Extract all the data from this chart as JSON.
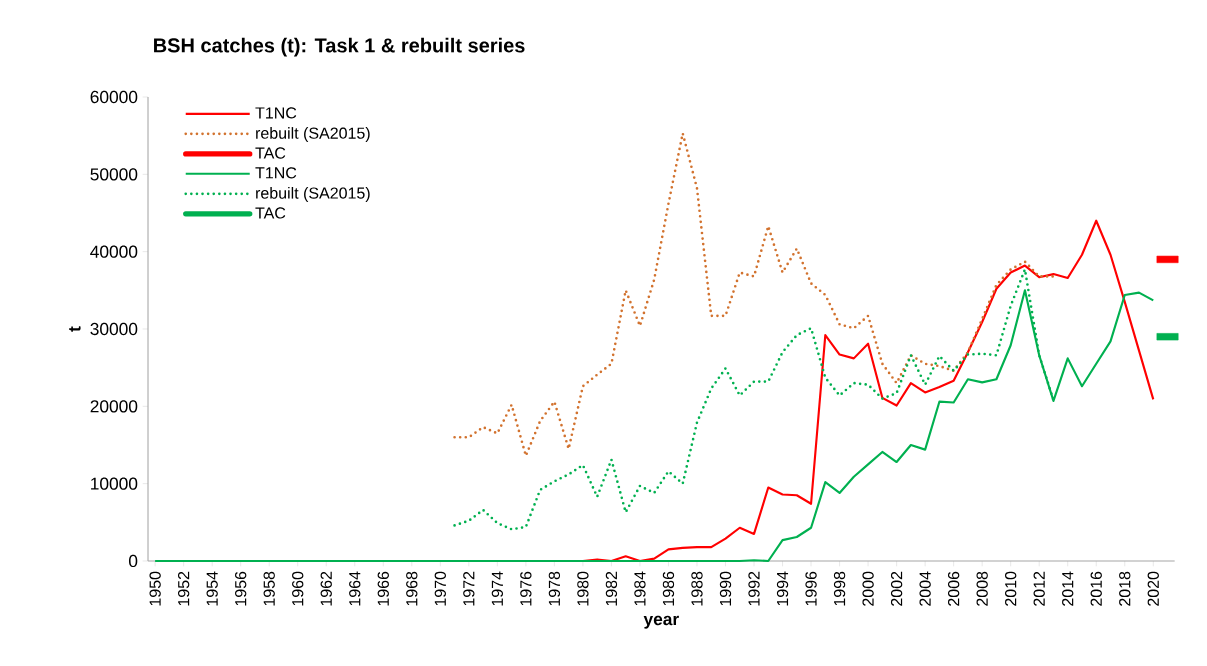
{
  "chart_data": {
    "type": "line",
    "title": "BSH catches (t): Task 1 & rebuilt series",
    "xlabel": "year",
    "ylabel": "t",
    "x": [
      1950,
      1951,
      1952,
      1953,
      1954,
      1955,
      1956,
      1957,
      1958,
      1959,
      1960,
      1961,
      1962,
      1963,
      1964,
      1965,
      1966,
      1967,
      1968,
      1969,
      1970,
      1971,
      1972,
      1973,
      1974,
      1975,
      1976,
      1977,
      1978,
      1979,
      1980,
      1981,
      1982,
      1983,
      1984,
      1985,
      1986,
      1987,
      1988,
      1989,
      1990,
      1991,
      1992,
      1993,
      1994,
      1995,
      1996,
      1997,
      1998,
      1999,
      2000,
      2001,
      2002,
      2003,
      2004,
      2005,
      2006,
      2007,
      2008,
      2009,
      2010,
      2011,
      2012,
      2013,
      2014,
      2015,
      2016,
      2017,
      2018,
      2019,
      2020
    ],
    "xlim": [
      1949.5,
      2021.5
    ],
    "xticks": [
      1950,
      1952,
      1954,
      1956,
      1958,
      1960,
      1962,
      1964,
      1966,
      1968,
      1970,
      1972,
      1974,
      1976,
      1978,
      1980,
      1982,
      1984,
      1986,
      1988,
      1990,
      1992,
      1994,
      1996,
      1998,
      2000,
      2002,
      2004,
      2006,
      2008,
      2010,
      2012,
      2014,
      2016,
      2018,
      2020
    ],
    "ylim": [
      0,
      60000
    ],
    "yticks": [
      0,
      10000,
      20000,
      30000,
      40000,
      50000,
      60000
    ],
    "legend": "top left",
    "series": [
      {
        "name": "T1NC",
        "color": "#ff0000",
        "line_style": "solid",
        "values": [
          null,
          null,
          null,
          null,
          null,
          null,
          null,
          null,
          null,
          null,
          null,
          null,
          null,
          null,
          null,
          null,
          null,
          null,
          null,
          null,
          null,
          null,
          null,
          null,
          null,
          null,
          null,
          null,
          null,
          null,
          0,
          200,
          0,
          600,
          0,
          300,
          1500,
          1700,
          1800,
          1800,
          2900,
          4300,
          3500,
          9500,
          8600,
          8500,
          7400,
          29200,
          26700,
          26200,
          28100,
          21100,
          20100,
          23000,
          21800,
          22500,
          23300,
          27000,
          30900,
          35200,
          37300,
          38200,
          36700,
          37100,
          36600,
          39600,
          44000,
          39600,
          33500,
          27200,
          20900
        ]
      },
      {
        "name": "rebuilt (SA2015)",
        "color": "#d2722e",
        "line_style": "dotted",
        "values": [
          null,
          null,
          null,
          null,
          null,
          null,
          null,
          null,
          null,
          null,
          null,
          null,
          null,
          null,
          null,
          null,
          null,
          null,
          null,
          null,
          null,
          16000,
          16000,
          17300,
          16500,
          20200,
          13600,
          18100,
          20600,
          14500,
          22600,
          24100,
          25500,
          35000,
          30400,
          36400,
          46200,
          55300,
          48200,
          31700,
          31700,
          37300,
          36800,
          43300,
          37300,
          40400,
          35900,
          34400,
          30600,
          30100,
          31700,
          25500,
          23000,
          26600,
          25500,
          25200,
          24600,
          27000,
          31300,
          35700,
          37700,
          38700,
          36800,
          36800,
          null,
          null,
          null,
          null,
          null,
          null,
          null
        ]
      },
      {
        "name": "TAC",
        "color": "#ff0000",
        "type": "scatter",
        "marker": "square",
        "x": [
          2021
        ],
        "values": [
          39000
        ]
      },
      {
        "name": "T1NC",
        "color": "#00b050",
        "line_style": "solid",
        "values": [
          0,
          0,
          0,
          0,
          0,
          0,
          0,
          0,
          0,
          0,
          0,
          0,
          0,
          0,
          0,
          0,
          0,
          0,
          0,
          0,
          0,
          0,
          0,
          0,
          0,
          0,
          0,
          0,
          0,
          0,
          0,
          0,
          0,
          0,
          0,
          0,
          0,
          0,
          0,
          0,
          0,
          0,
          100,
          0,
          2700,
          3100,
          4300,
          10200,
          8800,
          10900,
          12500,
          14100,
          12800,
          15000,
          14400,
          20600,
          20500,
          23500,
          23100,
          23500,
          27900,
          35000,
          26600,
          20700,
          26200,
          22600,
          25500,
          28400,
          34400,
          34700,
          33700
        ]
      },
      {
        "name": "rebuilt (SA2015)",
        "color": "#00b050",
        "line_style": "dotted",
        "values": [
          null,
          null,
          null,
          null,
          null,
          null,
          null,
          null,
          null,
          null,
          null,
          null,
          null,
          null,
          null,
          null,
          null,
          null,
          null,
          null,
          null,
          4600,
          5200,
          6600,
          4900,
          4100,
          4400,
          9200,
          10300,
          11200,
          12400,
          8300,
          13100,
          6300,
          9700,
          8800,
          11600,
          10000,
          17900,
          22300,
          24900,
          21400,
          23200,
          23200,
          27000,
          29200,
          30100,
          23700,
          21400,
          23000,
          22800,
          21000,
          21700,
          26600,
          22800,
          26500,
          24600,
          26700,
          26800,
          26600,
          33000,
          37700,
          26600,
          20800,
          null,
          null,
          null,
          null,
          null,
          null,
          null
        ]
      },
      {
        "name": "TAC",
        "color": "#00b050",
        "type": "scatter",
        "marker": "square",
        "x": [
          2021
        ],
        "values": [
          29000
        ]
      }
    ]
  }
}
